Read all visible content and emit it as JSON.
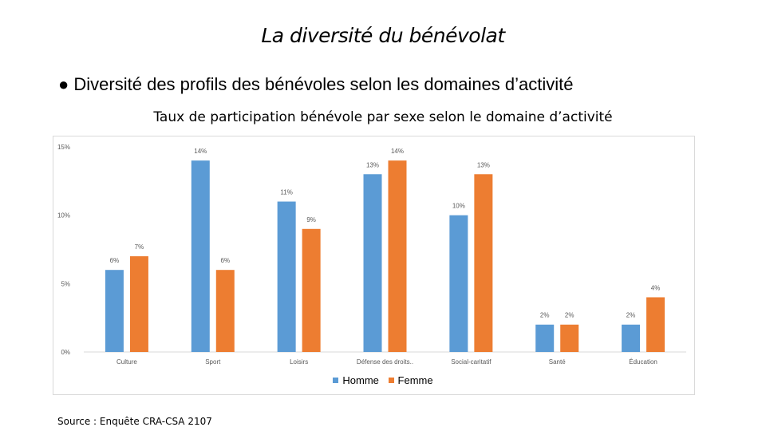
{
  "slide": {
    "title": "La diversité du bénévolat",
    "bullet": "● Diversité des profils des bénévoles selon les domaines d’activité",
    "source": "Source : Enquête CRA-CSA 2107"
  },
  "colors": {
    "homme": "#5B9BD5",
    "femme": "#ED7D31",
    "gridline": "#d9d9d9",
    "axis_text": "#595959"
  },
  "chart_data": {
    "type": "bar",
    "title": "Taux de participation bénévole par sexe selon le domaine d’activité",
    "categories": [
      "Culture",
      "Sport",
      "Loisirs",
      "Défense des droits..",
      "Social-caritatif",
      "Santé",
      "Éducation"
    ],
    "series": [
      {
        "name": "Homme",
        "values": [
          6,
          14,
          11,
          13,
          10,
          2,
          2
        ],
        "labels": [
          "6%",
          "14%",
          "11%",
          "13%",
          "10%",
          "2%",
          "2%"
        ]
      },
      {
        "name": "Femme",
        "values": [
          7,
          6,
          9,
          14,
          13,
          2,
          4
        ],
        "labels": [
          "7%",
          "6%",
          "9%",
          "14%",
          "13%",
          "2%",
          "4%"
        ]
      }
    ],
    "ylim": [
      0,
      15
    ],
    "yticks": [
      0,
      5,
      10,
      15
    ],
    "ytick_labels": [
      "0%",
      "5%",
      "10%",
      "15%"
    ],
    "grid": false,
    "legend": "bottom"
  }
}
